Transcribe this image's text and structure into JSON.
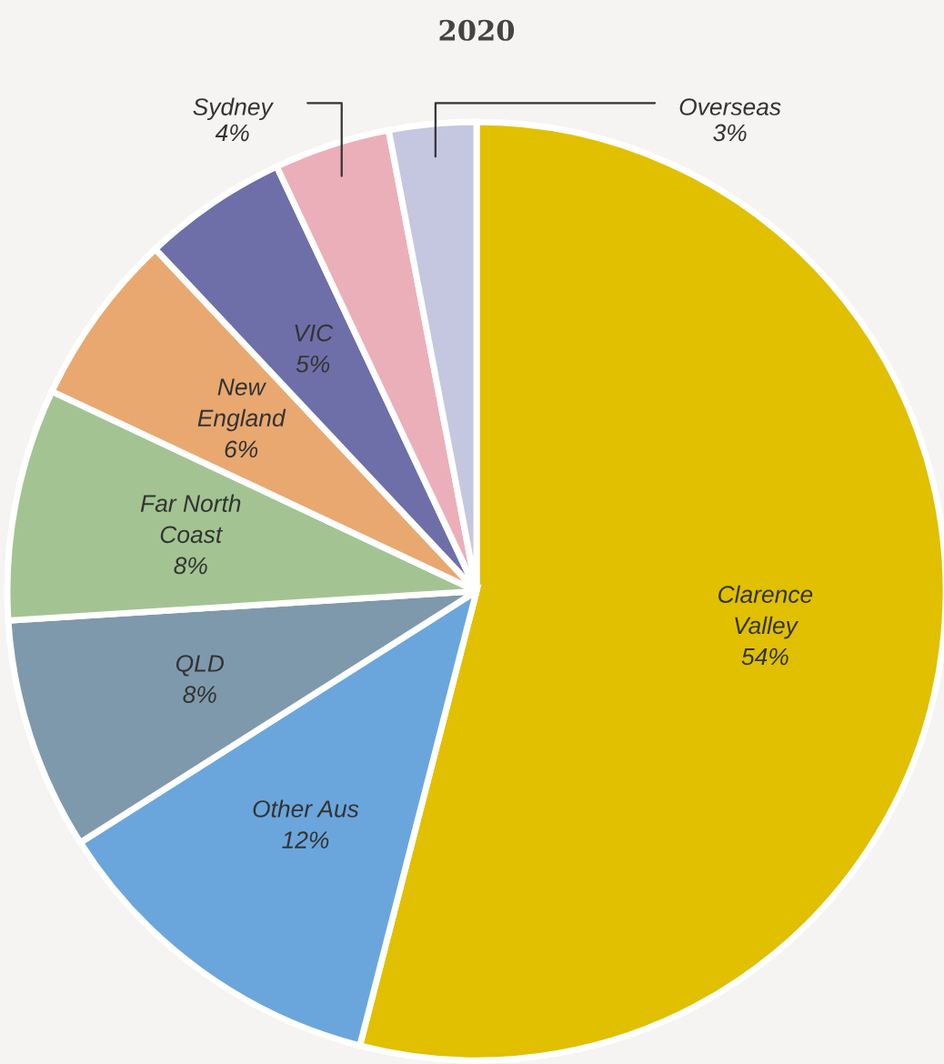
{
  "chart_data": {
    "type": "pie",
    "title": "2020",
    "categories": [
      "Clarence\nValley",
      "Other Aus",
      "QLD",
      "Far North\nCoast",
      "New\nEngland",
      "VIC",
      "Sydney",
      "Overseas"
    ],
    "values": [
      54,
      12,
      8,
      8,
      6,
      5,
      4,
      3
    ],
    "colors": [
      "#e0c000",
      "#6aa6dc",
      "#7f99ac",
      "#a3c492",
      "#e9a870",
      "#6e6fa8",
      "#ebafba",
      "#c5c6e0"
    ],
    "value_labels": [
      "54%",
      "12%",
      "8%",
      "8%",
      "6%",
      "5%",
      "4%",
      "3%"
    ]
  }
}
